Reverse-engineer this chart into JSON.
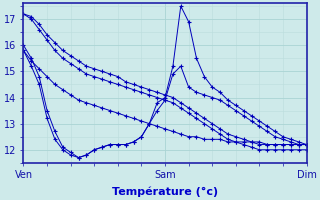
{
  "xlabel": "Température (°c)",
  "bg_color": "#ceeaea",
  "line_color": "#0000bb",
  "grid_major_color": "#aad4d4",
  "grid_minor_color": "#bbdddd",
  "axis_color": "#2222aa",
  "tick_color": "#1111aa",
  "label_color": "#0000cc",
  "ylim": [
    11.5,
    17.6
  ],
  "xlim": [
    0,
    48
  ],
  "xtick_positions": [
    0,
    24,
    48
  ],
  "xtick_labels": [
    "Ven",
    "Sam",
    "Dim"
  ],
  "ytick_positions": [
    12,
    13,
    14,
    15,
    16,
    17
  ],
  "series": [
    [
      17.2,
      17.1,
      16.8,
      16.4,
      16.1,
      15.8,
      15.6,
      15.4,
      15.2,
      15.1,
      15.0,
      14.9,
      14.8,
      14.6,
      14.5,
      14.4,
      14.3,
      14.2,
      14.1,
      14.0,
      13.8,
      13.6,
      13.4,
      13.2,
      13.0,
      12.8,
      12.6,
      12.5,
      12.4,
      12.3,
      12.2,
      12.2,
      12.2,
      12.2,
      12.2,
      12.2,
      12.2
    ],
    [
      17.2,
      17.0,
      16.6,
      16.2,
      15.8,
      15.5,
      15.3,
      15.1,
      14.9,
      14.8,
      14.7,
      14.6,
      14.5,
      14.4,
      14.3,
      14.2,
      14.1,
      14.0,
      13.9,
      13.8,
      13.6,
      13.4,
      13.2,
      13.0,
      12.8,
      12.6,
      12.4,
      12.3,
      12.2,
      12.1,
      12.0,
      12.0,
      12.0,
      12.0,
      12.0,
      12.0,
      12.0
    ],
    [
      16.0,
      15.5,
      14.8,
      13.5,
      12.7,
      12.1,
      11.9,
      11.7,
      11.8,
      12.0,
      12.1,
      12.2,
      12.2,
      12.2,
      12.3,
      12.5,
      13.0,
      13.8,
      14.0,
      15.2,
      17.5,
      16.9,
      15.5,
      14.8,
      14.4,
      14.2,
      13.9,
      13.7,
      13.5,
      13.3,
      13.1,
      12.9,
      12.7,
      12.5,
      12.4,
      12.3,
      12.2
    ],
    [
      15.8,
      15.2,
      14.5,
      13.2,
      12.4,
      12.0,
      11.8,
      11.7,
      11.8,
      12.0,
      12.1,
      12.2,
      12.2,
      12.2,
      12.3,
      12.5,
      13.0,
      13.5,
      13.9,
      14.9,
      15.2,
      14.4,
      14.2,
      14.1,
      14.0,
      13.9,
      13.7,
      13.5,
      13.3,
      13.1,
      12.9,
      12.7,
      12.5,
      12.4,
      12.3,
      12.2,
      12.2
    ],
    [
      15.8,
      15.4,
      15.1,
      14.8,
      14.5,
      14.3,
      14.1,
      13.9,
      13.8,
      13.7,
      13.6,
      13.5,
      13.4,
      13.3,
      13.2,
      13.1,
      13.0,
      12.9,
      12.8,
      12.7,
      12.6,
      12.5,
      12.5,
      12.4,
      12.4,
      12.4,
      12.3,
      12.3,
      12.3,
      12.3,
      12.3,
      12.2,
      12.2,
      12.2,
      12.2,
      12.2,
      12.2
    ]
  ]
}
